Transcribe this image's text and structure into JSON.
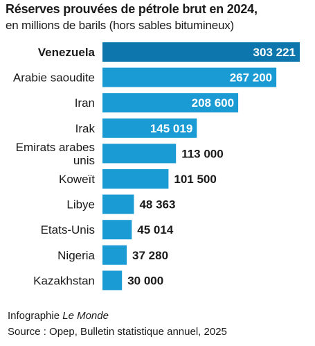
{
  "colors": {
    "bar": "#1b9bd3",
    "bar_highlight": "#0d77ad",
    "text": "#1a1a1a",
    "value_inside": "#ffffff"
  },
  "credit": {
    "prefix": "Infographie",
    "publication": "Le Monde"
  },
  "source": "Source : Opep, Bulletin statistique annuel, 2025",
  "chart_data": {
    "type": "bar",
    "orientation": "horizontal",
    "title": "Réserves prouvées de pétrole brut en 2024,",
    "subtitle": "en millions de barils (hors sables bitumineux)",
    "unit": "millions de barils",
    "highlight": "Venezuela",
    "categories": [
      [
        "Venezuela"
      ],
      [
        "Arabie saoudite"
      ],
      [
        "Iran"
      ],
      [
        "Irak"
      ],
      [
        "Emirats arabes",
        "unis"
      ],
      [
        "Koweït"
      ],
      [
        "Libye"
      ],
      [
        "Etats-Unis"
      ],
      [
        "Nigeria"
      ],
      [
        "Kazakhstan"
      ]
    ],
    "values": [
      303221,
      267200,
      208600,
      145019,
      113000,
      101500,
      48363,
      45014,
      37280,
      30000
    ],
    "value_labels": [
      "303 221",
      "267 200",
      "208 600",
      "145 019",
      "113 000",
      "101 500",
      "48 363",
      "45 014",
      "37 280",
      "30 000"
    ],
    "xlim": [
      0,
      303221
    ],
    "grid": false,
    "legend": "none"
  }
}
